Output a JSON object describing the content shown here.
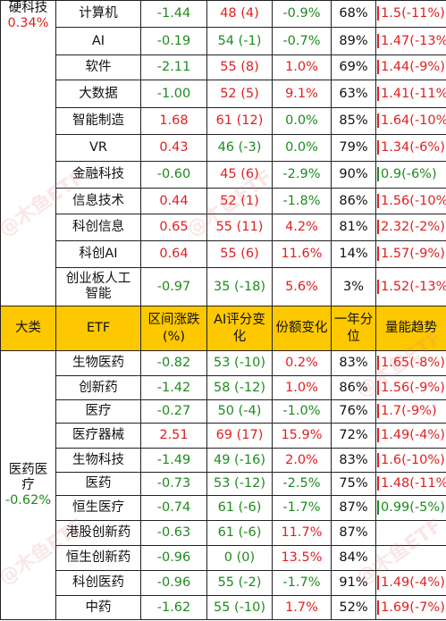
{
  "watermark_text": "@木鱼ETF",
  "colors": {
    "header_bg": "#fec800",
    "up": "#e02020",
    "down": "#1e8a1e"
  },
  "hardtech": {
    "category": "硬科技",
    "category_change": "0.34%",
    "rows": [
      {
        "etf": "计算机",
        "chg": "-1.44",
        "ai_score": "48",
        "ai_delta": "(4)",
        "share": "-0.9%",
        "pct": "68%",
        "vol": "1.5",
        "vol_pct": "(-11%)"
      },
      {
        "etf": "AI",
        "chg": "-0.19",
        "ai_score": "54",
        "ai_delta": "(-1)",
        "share": "-0.7%",
        "pct": "89%",
        "vol": "1.47",
        "vol_pct": "(-13%)"
      },
      {
        "etf": "软件",
        "chg": "-2.11",
        "ai_score": "55",
        "ai_delta": "(8)",
        "share": "1.0%",
        "pct": "69%",
        "vol": "1.44",
        "vol_pct": "(-9%)"
      },
      {
        "etf": "大数据",
        "chg": "-1.00",
        "ai_score": "52",
        "ai_delta": "(5)",
        "share": "9.1%",
        "pct": "63%",
        "vol": "1.41",
        "vol_pct": "(-11%)"
      },
      {
        "etf": "智能制造",
        "chg": "1.68",
        "ai_score": "61",
        "ai_delta": "(12)",
        "share": "0.0%",
        "pct": "85%",
        "vol": "1.64",
        "vol_pct": "(-10%)"
      },
      {
        "etf": "VR",
        "chg": "0.43",
        "ai_score": "46",
        "ai_delta": "(-3)",
        "share": "0.0%",
        "pct": "79%",
        "vol": "1.34",
        "vol_pct": "(-6%)"
      },
      {
        "etf": "金融科技",
        "chg": "-0.60",
        "ai_score": "45",
        "ai_delta": "(6)",
        "share": "-2.9%",
        "pct": "90%",
        "vol": "0.9",
        "vol_pct": "(-6%)"
      },
      {
        "etf": "信息技术",
        "chg": "0.44",
        "ai_score": "52",
        "ai_delta": "(1)",
        "share": "-1.8%",
        "pct": "86%",
        "vol": "1.56",
        "vol_pct": "(-10%)"
      },
      {
        "etf": "科创信息",
        "chg": "0.65",
        "ai_score": "55",
        "ai_delta": "(11)",
        "share": "4.2%",
        "pct": "81%",
        "vol": "2.32",
        "vol_pct": "(-2%)"
      },
      {
        "etf": "科创AI",
        "chg": "0.64",
        "ai_score": "55",
        "ai_delta": "(6)",
        "share": "11.6%",
        "pct": "14%",
        "vol": "1.57",
        "vol_pct": "(-9%)"
      },
      {
        "etf": "创业板人工智能",
        "chg": "-0.97",
        "ai_score": "35",
        "ai_delta": "(-18)",
        "share": "5.6%",
        "pct": "3%",
        "vol": "1.52",
        "vol_pct": "(-13%)"
      }
    ]
  },
  "header": {
    "category": "大类",
    "etf": "ETF",
    "range_change": "区间涨跌(%)",
    "ai_change": "AI评分变化",
    "share_change": "份额变化",
    "one_year_pct": "一年分位",
    "volume_trend": "量能趋势"
  },
  "pharma": {
    "category": "医药医疗",
    "category_change": "-0.62%",
    "rows": [
      {
        "etf": "生物医药",
        "chg": "-0.82",
        "ai_score": "53",
        "ai_delta": "(-10)",
        "share": "0.2%",
        "pct": "83%",
        "vol": "1.65",
        "vol_pct": "(-8%)"
      },
      {
        "etf": "创新药",
        "chg": "-1.42",
        "ai_score": "58",
        "ai_delta": "(-12)",
        "share": "1.0%",
        "pct": "86%",
        "vol": "1.56",
        "vol_pct": "(-9%)"
      },
      {
        "etf": "医疗",
        "chg": "-0.27",
        "ai_score": "50",
        "ai_delta": "(-4)",
        "share": "-1.0%",
        "pct": "76%",
        "vol": "1.7",
        "vol_pct": "(-9%)"
      },
      {
        "etf": "医疗器械",
        "chg": "2.51",
        "ai_score": "69",
        "ai_delta": "(17)",
        "share": "15.9%",
        "pct": "72%",
        "vol": "1.49",
        "vol_pct": "(-4%)"
      },
      {
        "etf": "生物科技",
        "chg": "-1.49",
        "ai_score": "49",
        "ai_delta": "(-16)",
        "share": "2.0%",
        "pct": "83%",
        "vol": "1.6",
        "vol_pct": "(-10%)"
      },
      {
        "etf": "医药",
        "chg": "-0.73",
        "ai_score": "53",
        "ai_delta": "(-12)",
        "share": "-2.5%",
        "pct": "75%",
        "vol": "1.48",
        "vol_pct": "(-11%)"
      },
      {
        "etf": "恒生医疗",
        "chg": "-0.74",
        "ai_score": "61",
        "ai_delta": "(-6)",
        "share": "-1.7%",
        "pct": "87%",
        "vol": "0.99",
        "vol_pct": "(-5%)"
      },
      {
        "etf": "港股创新药",
        "chg": "-0.63",
        "ai_score": "61",
        "ai_delta": "(-6)",
        "share": "11.7%",
        "pct": "87%",
        "vol": "",
        "vol_pct": ""
      },
      {
        "etf": "恒生创新药",
        "chg": "-0.96",
        "ai_score": "0",
        "ai_delta": "(0)",
        "share": "13.5%",
        "pct": "84%",
        "vol": "",
        "vol_pct": ""
      },
      {
        "etf": "科创医药",
        "chg": "-0.96",
        "ai_score": "55",
        "ai_delta": "(-2)",
        "share": "-1.7%",
        "pct": "91%",
        "vol": "1.49",
        "vol_pct": "(-4%)"
      },
      {
        "etf": "中药",
        "chg": "-1.62",
        "ai_score": "55",
        "ai_delta": "(-10)",
        "share": "1.7%",
        "pct": "52%",
        "vol": "1.69",
        "vol_pct": "(-7%)"
      }
    ]
  }
}
